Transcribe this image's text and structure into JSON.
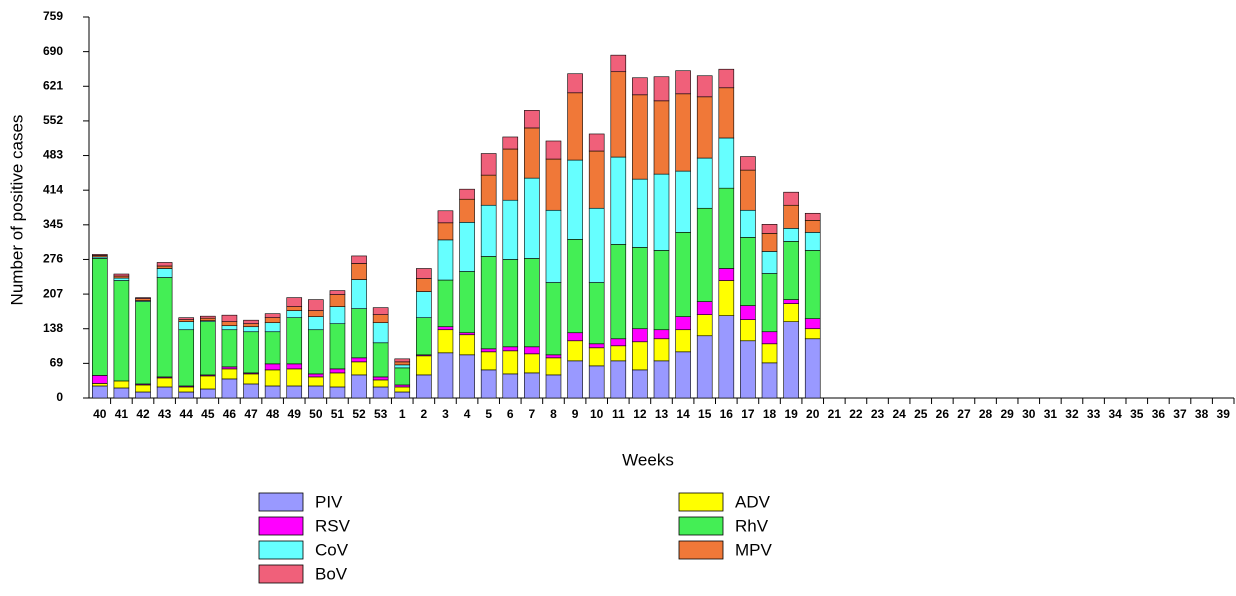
{
  "chart_data": {
    "type": "bar",
    "stacked": true,
    "x_label": "Weeks",
    "y_label": "Number of positive cases",
    "categories": [
      "40",
      "41",
      "42",
      "43",
      "44",
      "45",
      "46",
      "47",
      "48",
      "49",
      "50",
      "51",
      "52",
      "53",
      "1",
      "2",
      "3",
      "4",
      "5",
      "6",
      "7",
      "8",
      "9",
      "10",
      "11",
      "12",
      "13",
      "14",
      "15",
      "16",
      "17",
      "18",
      "19",
      "20",
      "21",
      "22",
      "23",
      "24",
      "25",
      "26",
      "27",
      "28",
      "29",
      "30",
      "31",
      "32",
      "33",
      "34",
      "35",
      "36",
      "37",
      "38",
      "39"
    ],
    "ylim": [
      0,
      759
    ],
    "yticks": [
      0,
      69,
      138,
      207,
      276,
      345,
      414,
      483,
      552,
      621,
      690,
      759
    ],
    "series": [
      {
        "name": "PIV",
        "color": "#9999ff",
        "values": [
          24,
          20,
          12,
          22,
          12,
          18,
          38,
          28,
          24,
          24,
          24,
          22,
          46,
          22,
          12,
          46,
          90,
          86,
          56,
          48,
          50,
          46,
          74,
          64,
          74,
          56,
          74,
          92,
          124,
          164,
          114,
          70,
          152,
          118,
          null,
          null,
          null,
          null,
          null,
          null,
          null,
          null,
          null,
          null,
          null,
          null,
          null,
          null,
          null,
          null,
          null,
          null,
          null
        ]
      },
      {
        "name": "ADV",
        "color": "#ffff00",
        "values": [
          5,
          14,
          14,
          18,
          10,
          26,
          20,
          20,
          32,
          34,
          18,
          28,
          26,
          14,
          10,
          38,
          46,
          40,
          36,
          46,
          38,
          34,
          40,
          36,
          30,
          56,
          44,
          44,
          42,
          70,
          42,
          38,
          36,
          20,
          null,
          null,
          null,
          null,
          null,
          null,
          null,
          null,
          null,
          null,
          null,
          null,
          null,
          null,
          null,
          null,
          null,
          null,
          null
        ]
      },
      {
        "name": "RSV",
        "color": "#ff00ff",
        "values": [
          16,
          0,
          2,
          2,
          2,
          2,
          4,
          2,
          12,
          10,
          6,
          8,
          8,
          6,
          4,
          2,
          6,
          4,
          6,
          8,
          14,
          6,
          16,
          8,
          14,
          26,
          18,
          26,
          26,
          24,
          28,
          24,
          8,
          20,
          null,
          null,
          null,
          null,
          null,
          null,
          null,
          null,
          null,
          null,
          null,
          null,
          null,
          null,
          null,
          null,
          null,
          null,
          null
        ]
      },
      {
        "name": "RhV",
        "color": "#44ee55",
        "values": [
          233,
          200,
          164,
          198,
          112,
          106,
          74,
          82,
          64,
          92,
          88,
          90,
          98,
          68,
          34,
          74,
          93,
          122,
          184,
          174,
          176,
          144,
          186,
          122,
          188,
          162,
          158,
          168,
          186,
          160,
          136,
          116,
          116,
          136,
          null,
          null,
          null,
          null,
          null,
          null,
          null,
          null,
          null,
          null,
          null,
          null,
          null,
          null,
          null,
          null,
          null,
          null,
          null
        ]
      },
      {
        "name": "CoV",
        "color": "#66ffff",
        "values": [
          3,
          5,
          2,
          18,
          16,
          2,
          8,
          10,
          18,
          14,
          26,
          34,
          58,
          40,
          6,
          52,
          80,
          98,
          102,
          118,
          160,
          144,
          158,
          148,
          174,
          136,
          152,
          122,
          100,
          100,
          54,
          44,
          26,
          36,
          null,
          null,
          null,
          null,
          null,
          null,
          null,
          null,
          null,
          null,
          null,
          null,
          null,
          null,
          null,
          null,
          null,
          null,
          null
        ]
      },
      {
        "name": "MPV",
        "color": "#f07838",
        "values": [
          3,
          4,
          4,
          5,
          4,
          5,
          8,
          6,
          10,
          8,
          12,
          24,
          32,
          16,
          6,
          26,
          34,
          46,
          60,
          102,
          100,
          102,
          134,
          114,
          170,
          168,
          146,
          154,
          122,
          100,
          80,
          36,
          46,
          24,
          null,
          null,
          null,
          null,
          null,
          null,
          null,
          null,
          null,
          null,
          null,
          null,
          null,
          null,
          null,
          null,
          null,
          null,
          null
        ]
      },
      {
        "name": "BoV",
        "color": "#f0607a",
        "values": [
          2,
          4,
          2,
          7,
          4,
          4,
          13,
          7,
          8,
          18,
          22,
          8,
          15,
          14,
          6,
          20,
          24,
          20,
          43,
          24,
          35,
          36,
          38,
          34,
          33,
          34,
          48,
          46,
          42,
          37,
          27,
          18,
          26,
          14,
          null,
          null,
          null,
          null,
          null,
          null,
          null,
          null,
          null,
          null,
          null,
          null,
          null,
          null,
          null,
          null,
          null,
          null,
          null
        ]
      }
    ]
  }
}
